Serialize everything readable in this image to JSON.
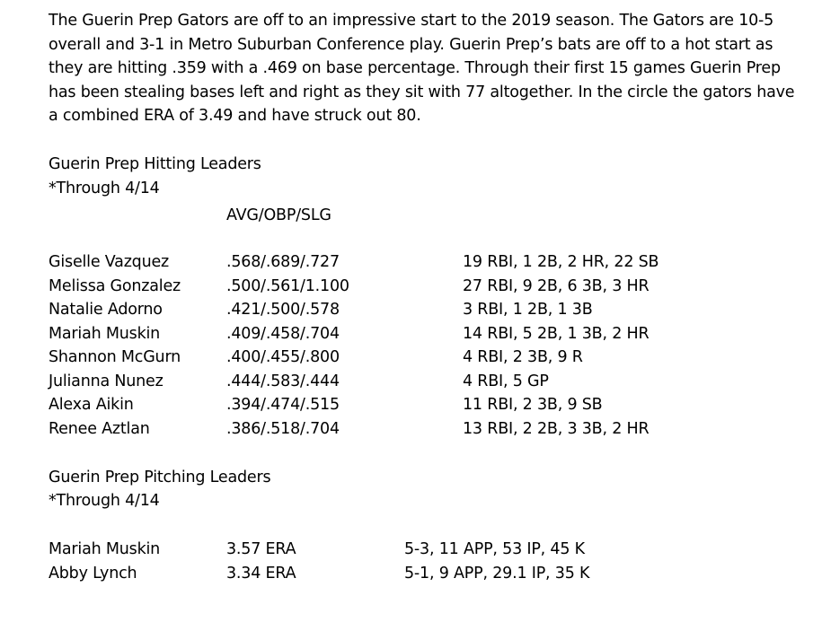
{
  "intro": {
    "lines": [
      "The Guerin Prep Gators are off to an impressive start to the 2019 season. The Gators are 10-5",
      "overall and 3-1 in Metro Suburban Conference play. Guerin Prep’s bats are off to a hot start as",
      "they are hitting .359 with a .469 on base percentage. Through their first 15 games Guerin Prep",
      "has been stealing bases left and right as they sit with 77 altogether. In the circle the gators have",
      "a combined ERA of 3.49 and have struck out 80."
    ]
  },
  "hitting": {
    "title": "Guerin Prep Hitting Leaders",
    "through": "*Through 4/14",
    "column_header": "AVG/OBP/SLG",
    "rows": [
      {
        "name": "Giselle Vazquez",
        "slash": ".568/.689/.727",
        "stats": "19 RBI, 1 2B, 2 HR, 22 SB"
      },
      {
        "name": "Melissa Gonzalez",
        "slash": ".500/.561/1.100",
        "stats": "27 RBI, 9 2B, 6 3B, 3 HR"
      },
      {
        "name": "Natalie Adorno",
        "slash": ".421/.500/.578",
        "stats": "3 RBI, 1 2B, 1 3B"
      },
      {
        "name": "Mariah Muskin",
        "slash": ".409/.458/.704",
        "stats": "14 RBI, 5 2B, 1 3B, 2 HR"
      },
      {
        "name": "Shannon McGurn",
        "slash": ".400/.455/.800",
        "stats": "4 RBI, 2 3B, 9 R"
      },
      {
        "name": "Julianna Nunez",
        "slash": ".444/.583/.444",
        "stats": "4 RBI, 5 GP"
      },
      {
        "name": "Alexa Aikin",
        "slash": ".394/.474/.515",
        "stats": "11 RBI, 2 3B, 9 SB"
      },
      {
        "name": "Renee Aztlan",
        "slash": ".386/.518/.704",
        "stats": "13 RBI, 2 2B, 3 3B, 2 HR"
      }
    ]
  },
  "pitching": {
    "title": "Guerin Prep Pitching Leaders",
    "through": "*Through 4/14",
    "rows": [
      {
        "name": "Mariah Muskin",
        "era": "3.57 ERA",
        "stats": "5-3, 11 APP, 53 IP, 45 K"
      },
      {
        "name": "Abby Lynch",
        "era": "3.34 ERA",
        "stats": "5-1, 9 APP, 29.1 IP, 35 K"
      }
    ]
  }
}
